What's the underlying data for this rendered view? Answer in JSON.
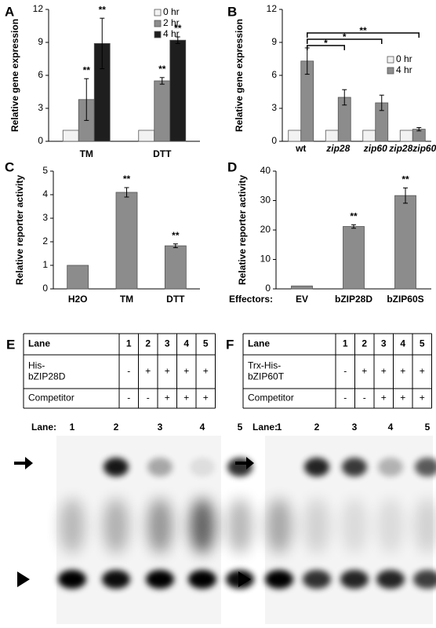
{
  "chart_data": [
    {
      "type": "bar",
      "label": "A",
      "y_label": "Relative gene expression",
      "categories": [
        "TM",
        "DTT"
      ],
      "series": [
        {
          "name": "0 hr",
          "color": "#f2f2f2",
          "values": [
            1,
            1
          ],
          "errors": [
            null,
            null
          ]
        },
        {
          "name": "2 hr",
          "color": "#8c8c8c",
          "values": [
            3.8,
            5.5
          ],
          "errors": [
            1.9,
            0.3
          ],
          "significance": [
            "**",
            "**"
          ]
        },
        {
          "name": "4 hr",
          "color": "#1e1e1e",
          "values": [
            8.9,
            9.2
          ],
          "errors": [
            2.3,
            0.3
          ],
          "significance": [
            "**",
            "**"
          ]
        }
      ],
      "ylim": [
        0,
        12
      ],
      "yticks": [
        0,
        3,
        6,
        9,
        12
      ],
      "legend": "top-right"
    },
    {
      "type": "bar",
      "label": "B",
      "y_label": "Relative gene expression",
      "categories": [
        "wt",
        "zip28",
        "zip60",
        "zip28zip60"
      ],
      "category_style": [
        "normal",
        "italic",
        "italic",
        "italic"
      ],
      "series": [
        {
          "name": "0 hr",
          "color": "#f2f2f2",
          "values": [
            1,
            1,
            1,
            1
          ],
          "errors": [
            null,
            null,
            null,
            null
          ]
        },
        {
          "name": "4 hr",
          "color": "#8c8c8c",
          "values": [
            7.3,
            4.0,
            3.5,
            1.1
          ],
          "errors": [
            1.2,
            0.7,
            0.7,
            0.15
          ]
        }
      ],
      "comparisons": [
        "*",
        "*",
        "**"
      ],
      "ylim": [
        0,
        12
      ],
      "yticks": [
        0,
        3,
        6,
        9,
        12
      ],
      "legend": "right"
    },
    {
      "type": "bar",
      "label": "C",
      "y_label": "Relative reporter activity",
      "categories": [
        "H2O",
        "TM",
        "DTT"
      ],
      "series": [
        {
          "color": "#8c8c8c",
          "values": [
            1,
            4.1,
            1.83
          ],
          "errors": [
            null,
            0.2,
            0.08
          ],
          "significance": [
            null,
            "**",
            "**"
          ]
        }
      ],
      "ylim": [
        0,
        5
      ],
      "yticks": [
        0,
        1,
        2,
        3,
        4,
        5
      ]
    },
    {
      "type": "bar",
      "label": "D",
      "y_label": "Relative reporter activity",
      "x_label": "Effectors:",
      "categories": [
        "EV",
        "bZIP28D",
        "bZIP60S"
      ],
      "series": [
        {
          "color": "#8c8c8c",
          "values": [
            1,
            21.2,
            31.7
          ],
          "errors": [
            null,
            0.6,
            2.6
          ],
          "significance": [
            null,
            "**",
            "**"
          ]
        }
      ],
      "ylim": [
        0,
        40
      ],
      "yticks": [
        0,
        10,
        20,
        30,
        40
      ]
    }
  ],
  "tables": [
    {
      "label": "E",
      "rows": [
        [
          [
            "Lane"
          ],
          "1",
          "2",
          "3",
          "4",
          "5"
        ],
        [
          [
            "His-",
            "bZIP28D"
          ],
          "-",
          "+",
          "+",
          "+",
          "+"
        ],
        [
          [
            "Competitor"
          ],
          "-",
          "-",
          "+",
          "+",
          "+"
        ]
      ]
    },
    {
      "label": "F",
      "rows": [
        [
          [
            "Lane"
          ],
          "1",
          "2",
          "3",
          "4",
          "5"
        ],
        [
          [
            "Trx-His-",
            "bZIP60T"
          ],
          "-",
          "+",
          "+",
          "+",
          "+"
        ],
        [
          [
            "Competitor"
          ],
          "-",
          "-",
          "+",
          "+",
          "+"
        ]
      ]
    }
  ],
  "gels": [
    {
      "lane_title": "Lane:",
      "lanes": [
        "1",
        "2",
        "3",
        "4",
        "5"
      ]
    },
    {
      "lane_title": "Lane:",
      "lanes": [
        "1",
        "2",
        "3",
        "4",
        "5"
      ]
    }
  ]
}
